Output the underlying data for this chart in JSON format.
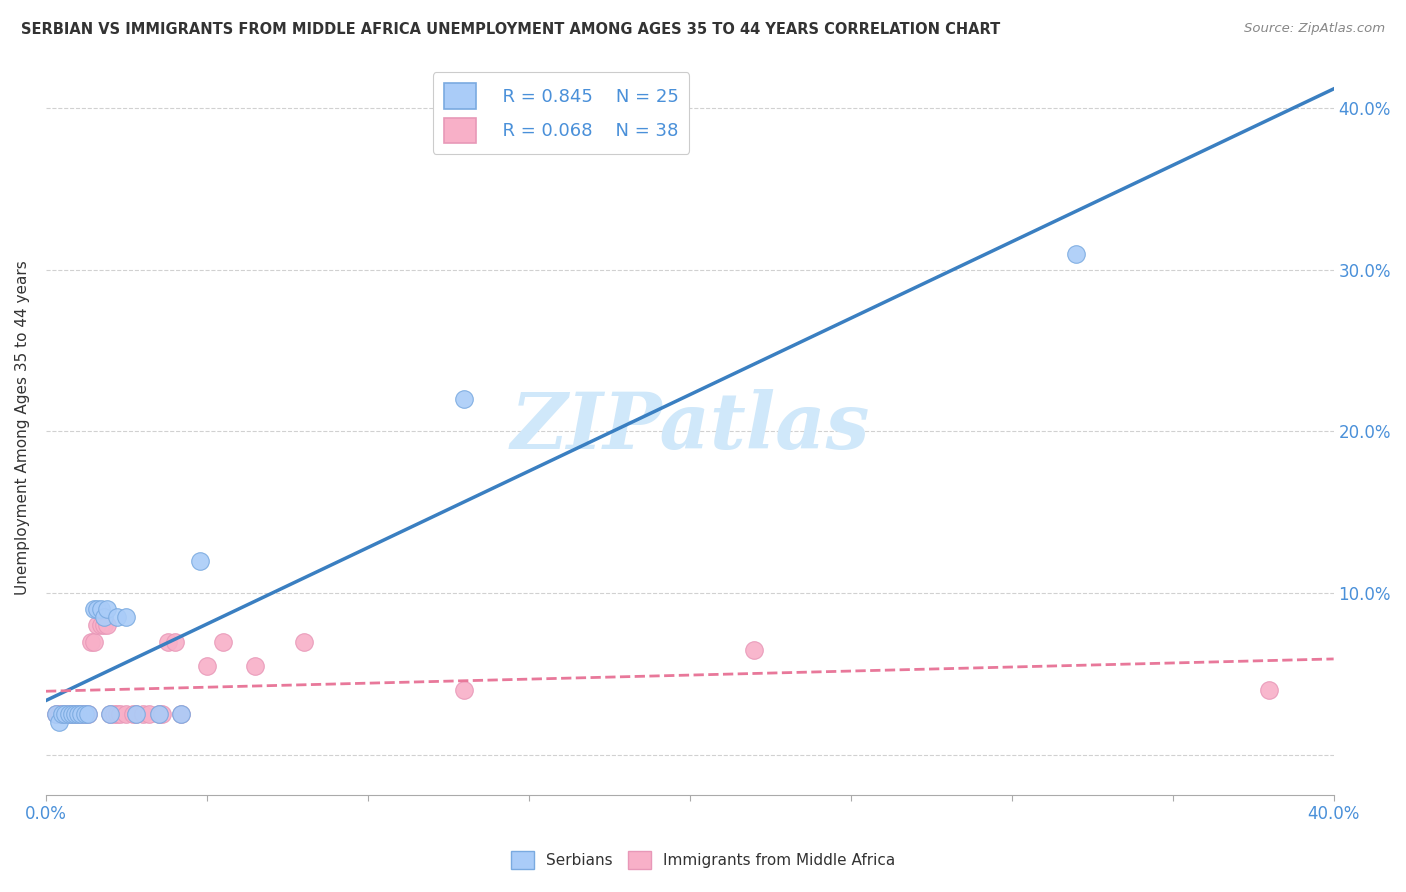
{
  "title": "SERBIAN VS IMMIGRANTS FROM MIDDLE AFRICA UNEMPLOYMENT AMONG AGES 35 TO 44 YEARS CORRELATION CHART",
  "source": "Source: ZipAtlas.com",
  "ylabel": "Unemployment Among Ages 35 to 44 years",
  "watermark": "ZIPatlas",
  "legend_blue_r": "R = 0.845",
  "legend_blue_n": "N = 25",
  "legend_pink_r": "R = 0.068",
  "legend_pink_n": "N = 38",
  "blue_scatter_x": [
    0.003,
    0.004,
    0.005,
    0.006,
    0.007,
    0.008,
    0.009,
    0.01,
    0.011,
    0.012,
    0.013,
    0.015,
    0.016,
    0.017,
    0.018,
    0.019,
    0.02,
    0.022,
    0.025,
    0.028,
    0.035,
    0.042,
    0.048,
    0.13,
    0.32
  ],
  "blue_scatter_y": [
    0.025,
    0.02,
    0.025,
    0.025,
    0.025,
    0.025,
    0.025,
    0.025,
    0.025,
    0.025,
    0.025,
    0.09,
    0.09,
    0.09,
    0.085,
    0.09,
    0.025,
    0.085,
    0.085,
    0.025,
    0.025,
    0.025,
    0.12,
    0.22,
    0.31
  ],
  "pink_scatter_x": [
    0.003,
    0.004,
    0.005,
    0.006,
    0.007,
    0.008,
    0.009,
    0.01,
    0.011,
    0.012,
    0.013,
    0.014,
    0.015,
    0.016,
    0.017,
    0.018,
    0.019,
    0.02,
    0.021,
    0.022,
    0.023,
    0.025,
    0.027,
    0.028,
    0.03,
    0.032,
    0.035,
    0.036,
    0.038,
    0.04,
    0.042,
    0.05,
    0.055,
    0.065,
    0.08,
    0.13,
    0.22,
    0.38
  ],
  "pink_scatter_y": [
    0.025,
    0.025,
    0.025,
    0.025,
    0.025,
    0.025,
    0.025,
    0.025,
    0.025,
    0.025,
    0.025,
    0.07,
    0.07,
    0.08,
    0.08,
    0.08,
    0.08,
    0.025,
    0.025,
    0.025,
    0.025,
    0.025,
    0.025,
    0.025,
    0.025,
    0.025,
    0.025,
    0.025,
    0.07,
    0.07,
    0.025,
    0.055,
    0.07,
    0.055,
    0.07,
    0.04,
    0.065,
    0.04
  ],
  "blue_line_color": "#3a7fc1",
  "pink_line_color": "#e8789a",
  "blue_scatter_facecolor": "#aaccf8",
  "blue_scatter_edgecolor": "#7aaae0",
  "pink_scatter_facecolor": "#f8b0c8",
  "pink_scatter_edgecolor": "#e898b8",
  "axis_label_color": "#4a90d9",
  "title_color": "#333333",
  "watermark_color": "#d0e8fa",
  "background_color": "#ffffff",
  "grid_color": "#cccccc",
  "xlim": [
    0.0,
    0.4
  ],
  "ylim": [
    -0.025,
    0.43
  ],
  "ytick_vals": [
    0.0,
    0.1,
    0.2,
    0.3,
    0.4
  ],
  "ytick_right_labels": [
    "",
    "10.0%",
    "20.0%",
    "30.0%",
    "40.0%"
  ],
  "xtick_vals": [
    0.0,
    0.05,
    0.1,
    0.15,
    0.2,
    0.25,
    0.3,
    0.35,
    0.4
  ],
  "xtick_show_labels": {
    "0.0": "0.0%",
    "0.4": "40.0%"
  },
  "legend_label_serbians": "Serbians",
  "legend_label_immigrants": "Immigrants from Middle Africa"
}
